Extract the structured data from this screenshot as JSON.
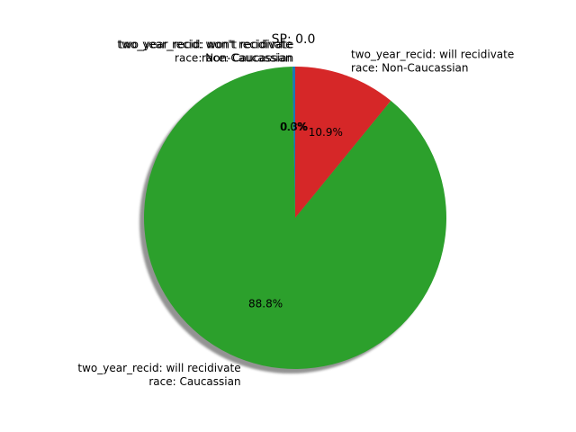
{
  "chart_data": {
    "type": "pie",
    "title": "SP: 0.0",
    "shadow": true,
    "start_angle_deg": 90,
    "direction": "counterclockwise",
    "slices": [
      {
        "label_lines": [
          "two_year_recid: won't recidivate",
          "race: Caucassian"
        ],
        "value": 0.3,
        "pct_label": "0.3%",
        "color": "#1f77b4"
      },
      {
        "label_lines": [
          "two_year_recid: won't recidivate",
          "race: Non-Caucassian"
        ],
        "value": 0.0,
        "pct_label": "0.0%",
        "color": "#ff7f0e"
      },
      {
        "label_lines": [
          "two_year_recid: will recidivate",
          "race: Caucassian"
        ],
        "value": 88.8,
        "pct_label": "88.8%",
        "color": "#2ca02c"
      },
      {
        "label_lines": [
          "two_year_recid: will recidivate",
          "race: Non-Caucassian"
        ],
        "value": 10.9,
        "pct_label": "10.9%",
        "color": "#d62728"
      }
    ]
  }
}
